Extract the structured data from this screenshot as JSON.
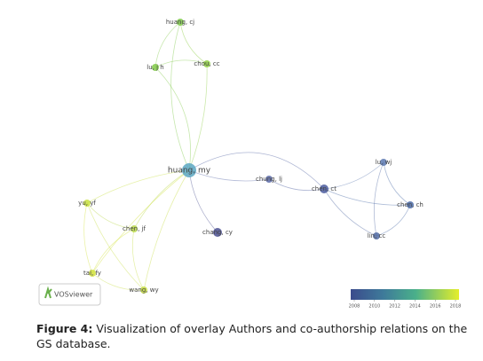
{
  "nodes": [
    {
      "label": "huang, cj",
      "color": "#7fc94a"
    },
    {
      "label": "chou, cc",
      "color": "#8fcf45"
    },
    {
      "label": "lu, j h",
      "color": "#80c946"
    },
    {
      "label": "huang, my",
      "color": "#5aa7c2"
    },
    {
      "label": "chung, lj",
      "color": "#5a6aa8"
    },
    {
      "label": "chen, ct",
      "color": "#4a5a9e"
    },
    {
      "label": "lu, wj",
      "color": "#5a78b0"
    },
    {
      "label": "chen, ch",
      "color": "#4a6aa6"
    },
    {
      "label": "lin, cc",
      "color": "#4f68a2"
    },
    {
      "label": "chang, cy",
      "color": "#4a4f90"
    },
    {
      "label": "yu, yf",
      "color": "#c8e040"
    },
    {
      "label": "chen, jf",
      "color": "#b8d84a"
    },
    {
      "label": "tai, fy",
      "color": "#d2e33e"
    },
    {
      "label": "wang, wy",
      "color": "#c8de44"
    }
  ],
  "colorbar": {
    "ticks": [
      2008,
      2010,
      2012,
      2014,
      2016,
      2018
    ]
  },
  "logo": "VOSviewer",
  "caption": {
    "label": "Figure 4:",
    "text": "Visualization of overlay Authors and co-authorship relations on the GS database."
  }
}
